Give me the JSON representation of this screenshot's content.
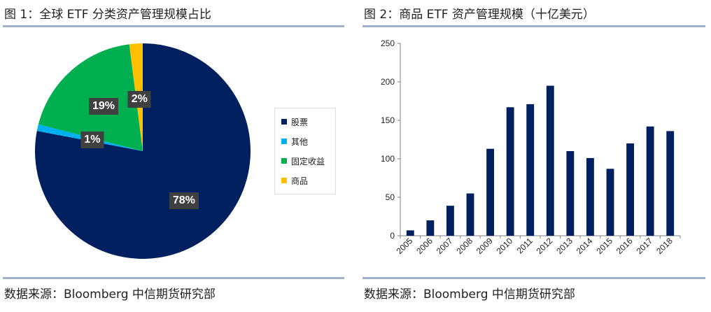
{
  "figure1": {
    "title": "图 1：全球 ETF 分类资产管理规模占比",
    "source": "数据来源：Bloomberg 中信期货研究部"
  },
  "figure2": {
    "title": "图 2：商品 ETF 资产管理规模（十亿美元）",
    "source": "数据来源：Bloomberg 中信期货研究部"
  },
  "chart_data": [
    {
      "type": "pie",
      "title": "",
      "legend_position": "right",
      "slices": [
        {
          "name": "股票",
          "value": 78,
          "label": "78%",
          "color": "#002060"
        },
        {
          "name": "其他",
          "value": 1,
          "label": "1%",
          "color": "#00b0f0"
        },
        {
          "name": "固定收益",
          "value": 19,
          "label": "19%",
          "color": "#00b050"
        },
        {
          "name": "商品",
          "value": 2,
          "label": "2%",
          "color": "#ffc000"
        }
      ]
    },
    {
      "type": "bar",
      "title": "",
      "xlabel": "",
      "ylabel": "",
      "categories": [
        "2005",
        "2006",
        "2007",
        "2008",
        "2009",
        "2010",
        "2011",
        "2012",
        "2013",
        "2014",
        "2015",
        "2016",
        "2017",
        "2018"
      ],
      "values": [
        7,
        20,
        39,
        55,
        113,
        167,
        171,
        195,
        110,
        101,
        87,
        120,
        142,
        136
      ],
      "ylim": [
        0,
        250
      ],
      "yticks": [
        "0",
        "50",
        "100",
        "150",
        "200",
        "250"
      ],
      "grid": false,
      "bar_color": "#002060"
    }
  ]
}
